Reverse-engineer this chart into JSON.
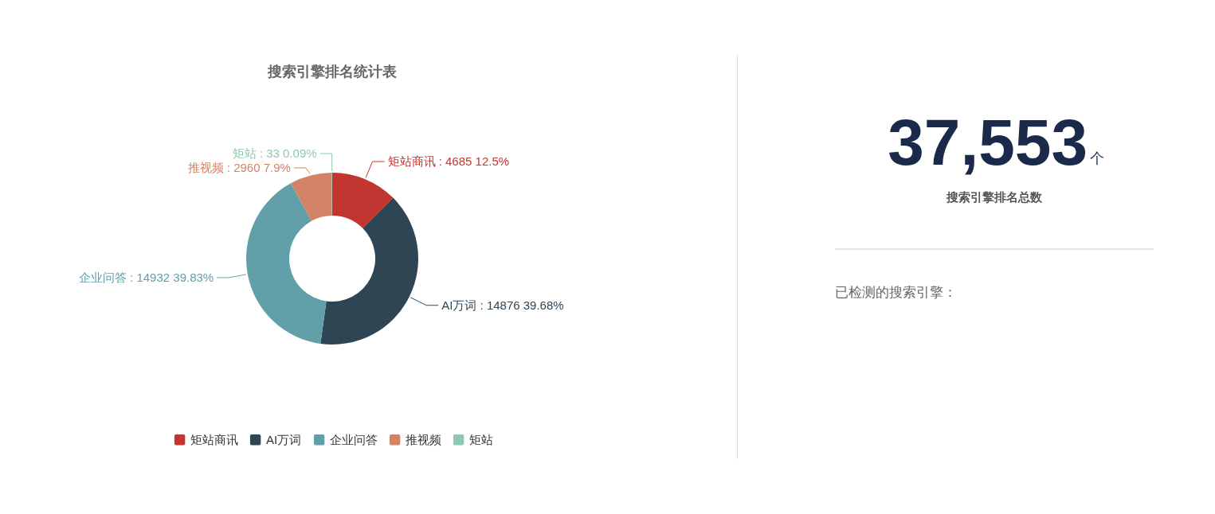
{
  "chart_data": [
    {
      "type": "donut",
      "title": "搜索引擎排名统计表",
      "categories": [
        "矩站商讯",
        "AI万词",
        "企业问答",
        "推视频",
        "矩站"
      ],
      "values": [
        4685,
        14876,
        14932,
        2960,
        33
      ],
      "colors": [
        "#c23531",
        "#2f4554",
        "#61a0a8",
        "#d48265",
        "#91c7ae"
      ],
      "value_labels": [
        "矩站商讯 : 4685   12.5%",
        "AI万词 : 14876   39.68%",
        "企业问答 : 14932   39.83%",
        "推视频 : 2960   7.9%",
        "矩站 : 33   0.09%"
      ],
      "legend": "bottom"
    },
    {
      "type": "other",
      "annotations": [
        "37,553",
        "个",
        "搜索引擎排名总数",
        "已检测的搜索引擎："
      ]
    }
  ]
}
